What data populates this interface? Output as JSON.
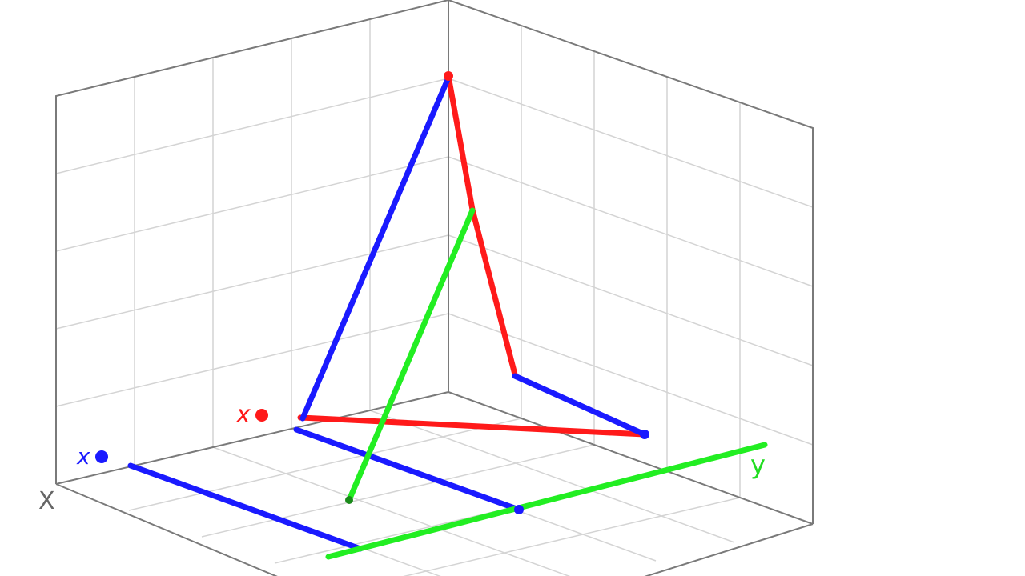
{
  "labels": {
    "red_point": "x",
    "blue_point": "x",
    "axis_x": "X",
    "axis_y": "y"
  }
}
